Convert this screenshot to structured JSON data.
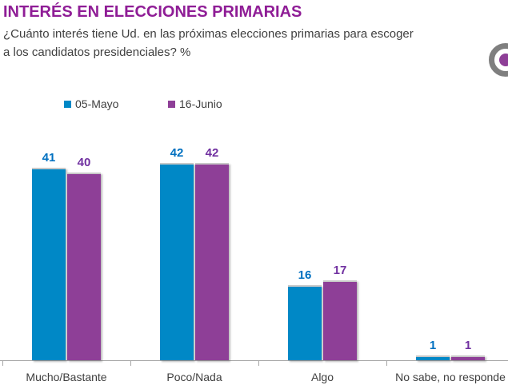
{
  "header": {
    "title": "INTERÉS EN ELECCIONES PRIMARIAS",
    "subtitle_lines": [
      "¿Cuánto interés tiene Ud. en las próximas elecciones primarias para escoger",
      "a los candidatos presidenciales? %"
    ]
  },
  "colors": {
    "title": "#8F1D96",
    "subtitle_text": "#3F3F3F",
    "axis": "#A6A6A6",
    "logo_ring": "#7F7F7F",
    "logo_dot": "#8E3F97"
  },
  "chart_data": {
    "type": "bar",
    "categories": [
      "Mucho/Bastante",
      "Poco/Nada",
      "Algo",
      "No sabe, no responde"
    ],
    "series": [
      {
        "name": "05-Mayo",
        "values": [
          41,
          42,
          16,
          1
        ],
        "color": "#0088C6",
        "label_color": "#0070C0"
      },
      {
        "name": "16-Junio",
        "values": [
          40,
          42,
          17,
          1
        ],
        "color": "#8E3F97",
        "label_color": "#7030A0"
      }
    ],
    "ylim": [
      0,
      46
    ],
    "grid": false,
    "legend_position": "top",
    "data_labels": true,
    "axis_ticks": "category-boundaries"
  }
}
